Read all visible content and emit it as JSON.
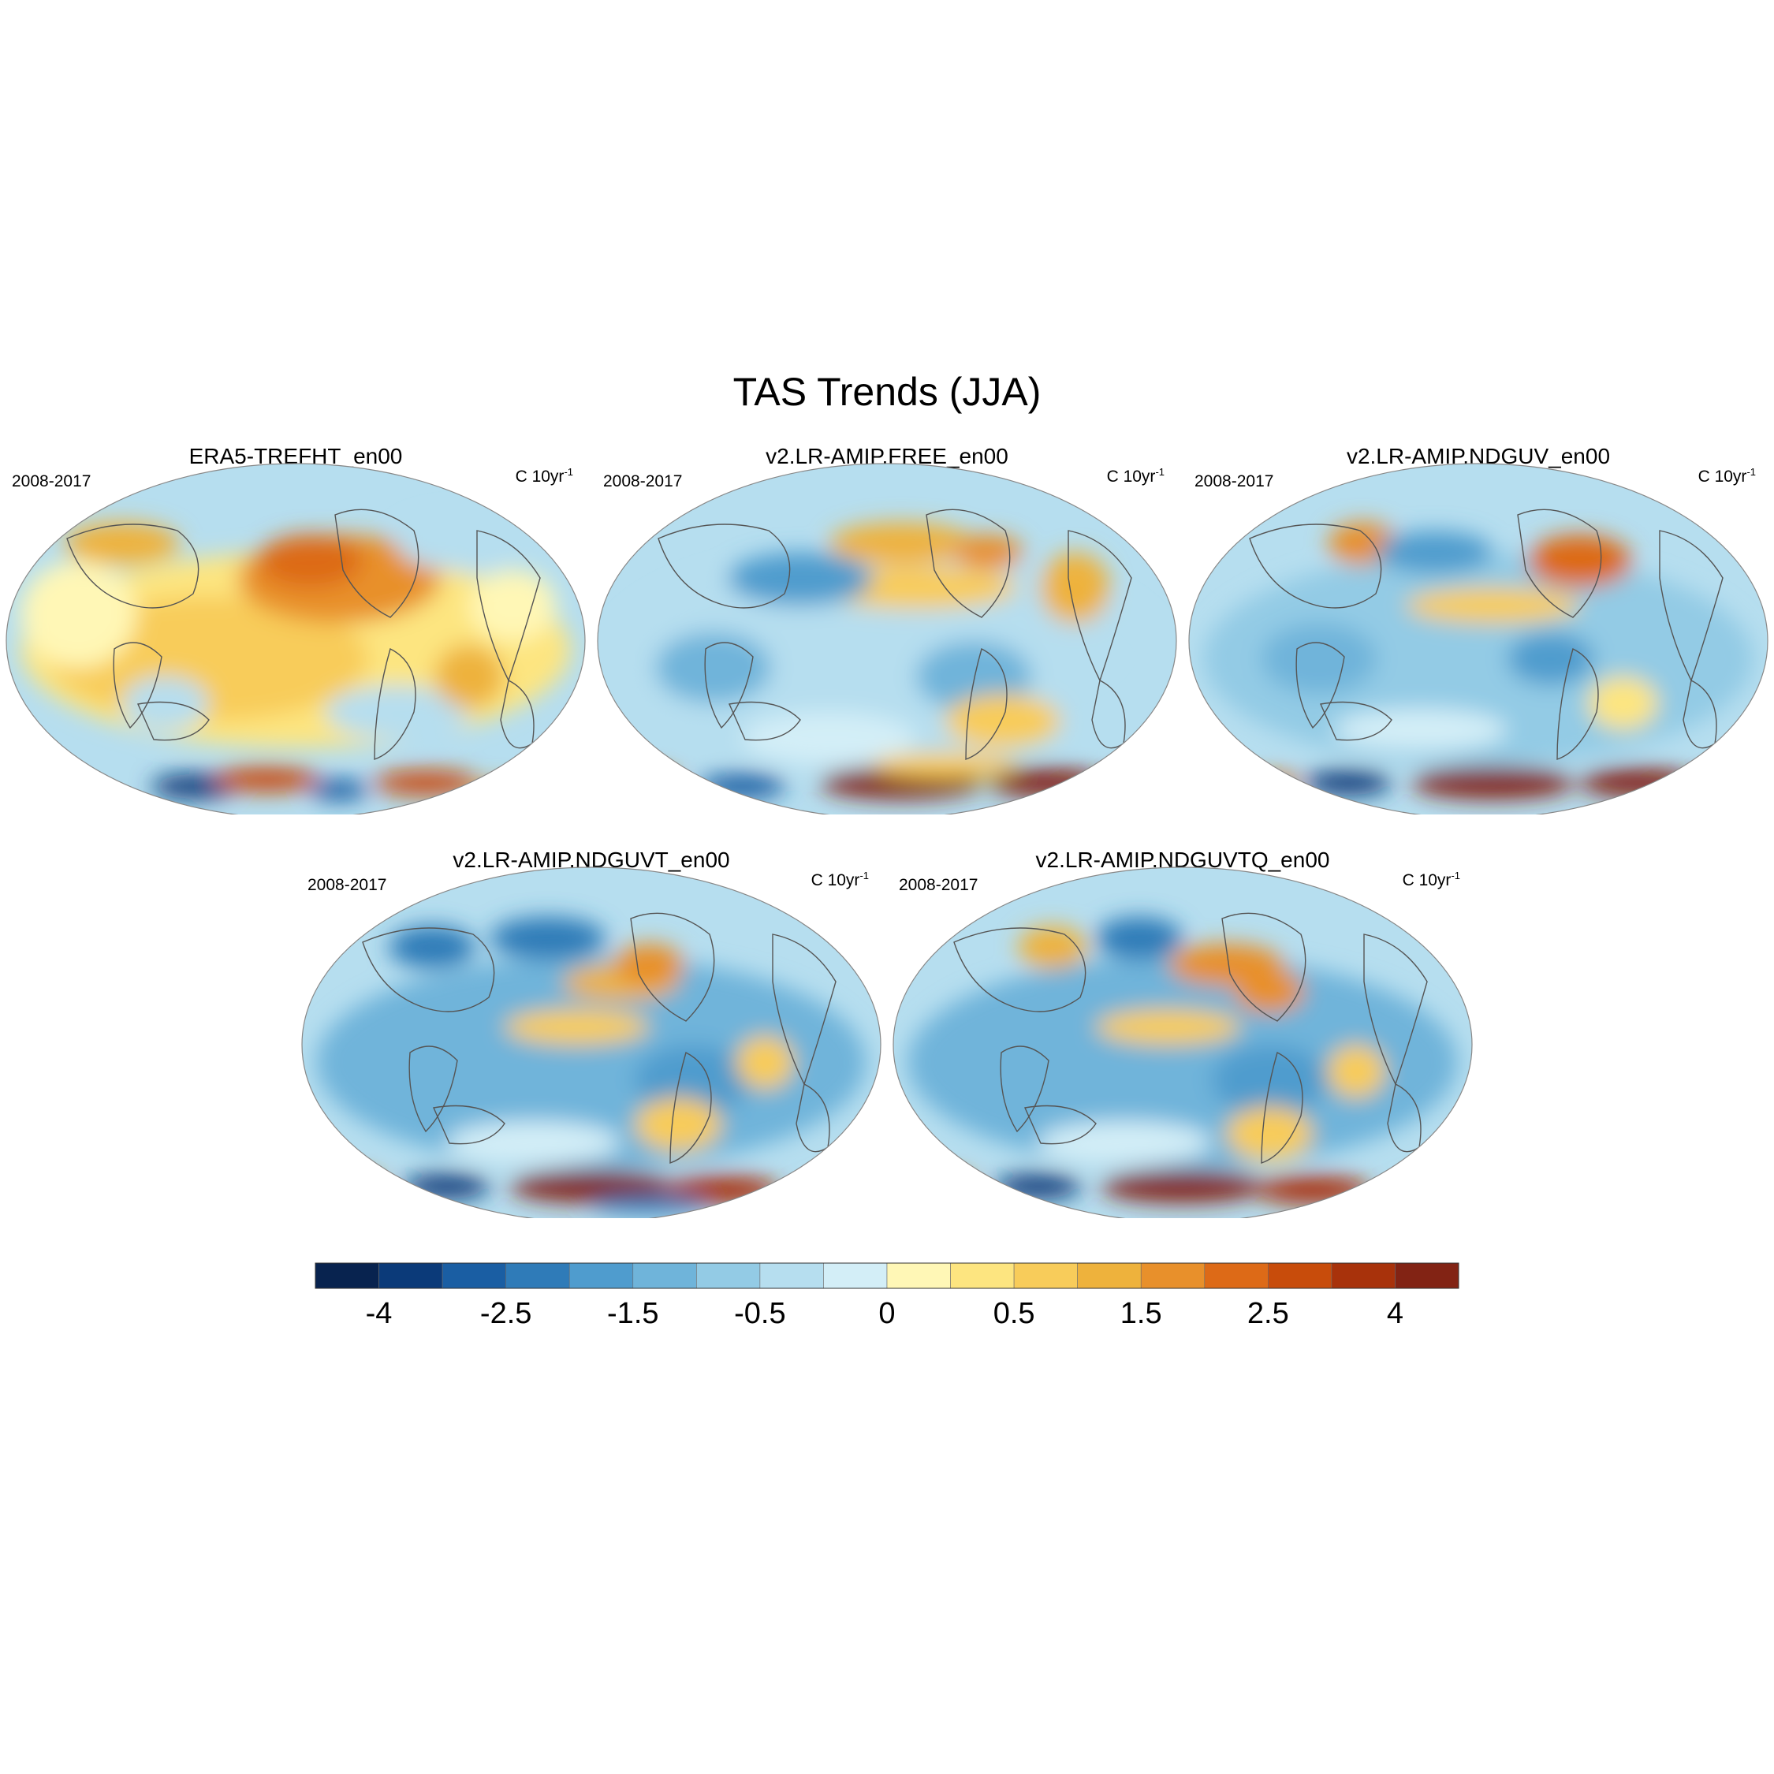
{
  "title": "TAS Trends (JJA)",
  "panels": [
    {
      "title": "ERA5-TREFHT_en00",
      "period": "2008-2017",
      "units_base": "C 10yr",
      "units_sup": "-1",
      "pattern": "era5"
    },
    {
      "title": "v2.LR-AMIP.FREE_en00",
      "period": "2008-2017",
      "units_base": "C 10yr",
      "units_sup": "-1",
      "pattern": "free"
    },
    {
      "title": "v2.LR-AMIP.NDGUV_en00",
      "period": "2008-2017",
      "units_base": "C 10yr",
      "units_sup": "-1",
      "pattern": "nduv"
    },
    {
      "title": "v2.LR-AMIP.NDGUVT_en00",
      "period": "2008-2017",
      "units_base": "C 10yr",
      "units_sup": "-1",
      "pattern": "nduvt"
    },
    {
      "title": "v2.LR-AMIP.NDGUVTQ_en00",
      "period": "2008-2017",
      "units_base": "C 10yr",
      "units_sup": "-1",
      "pattern": "nduvtq"
    }
  ],
  "colorbar": {
    "colors": [
      "#08234f",
      "#0b3a79",
      "#1a5ea3",
      "#2f7bb8",
      "#4f9cce",
      "#6fb4da",
      "#93cbe5",
      "#b6deef",
      "#d3eef7",
      "#fff7b6",
      "#fde580",
      "#f8cc5a",
      "#eeb23c",
      "#e8902b",
      "#dd6a17",
      "#c84c0b",
      "#a8320b",
      "#822314"
    ],
    "tick_labels": [
      "-4",
      "-2.5",
      "-1.5",
      "-0.5",
      "0",
      "0.5",
      "1.5",
      "2.5",
      "4"
    ]
  },
  "colors": {
    "coastline": "#555555",
    "map_border": "#888888"
  }
}
